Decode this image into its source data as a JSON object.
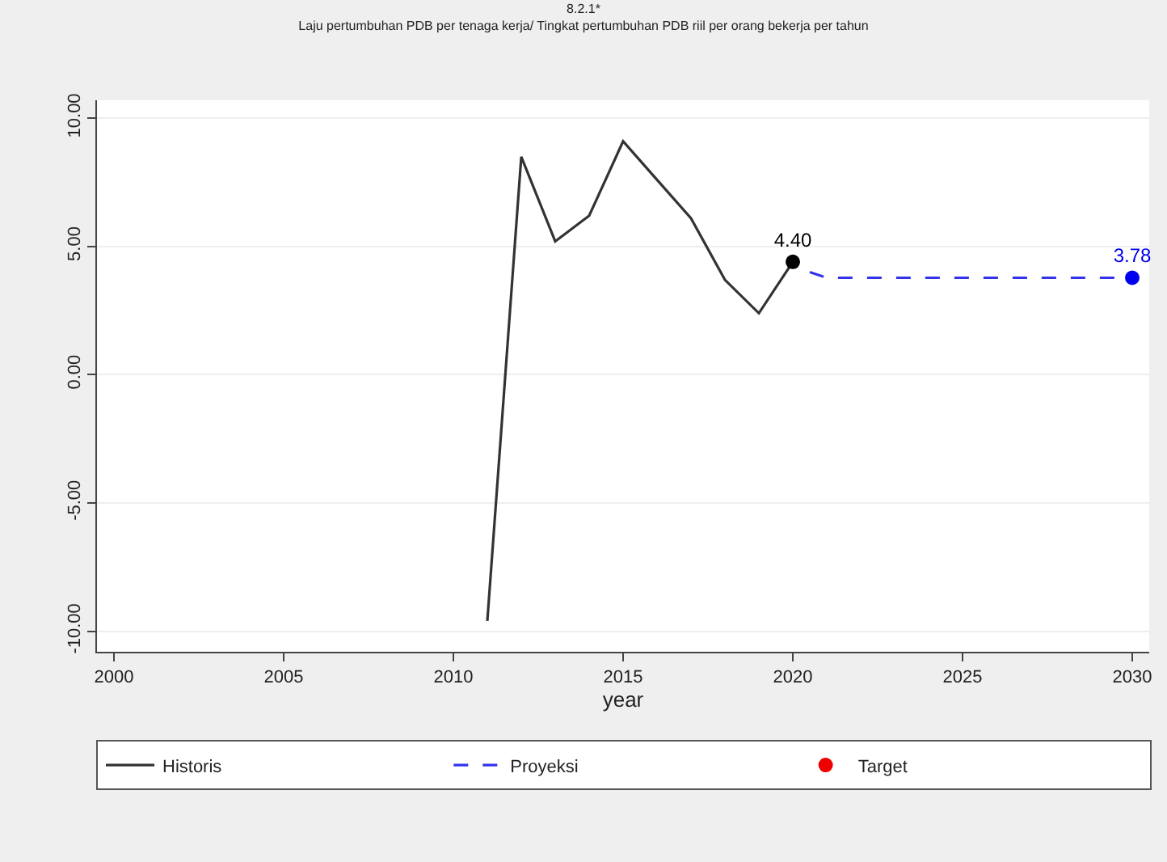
{
  "chart_data": {
    "type": "line",
    "title": "8.2.1*",
    "subtitle": "Laju pertumbuhan PDB per tenaga kerja/ Tingkat pertumbuhan PDB riil per orang bekerja per tahun",
    "xlabel": "year",
    "xlim": [
      1999.5,
      2030.5
    ],
    "xticks": [
      2000,
      2005,
      2010,
      2015,
      2020,
      2025,
      2030
    ],
    "ylim": [
      -10.8,
      10.7
    ],
    "yticks": [
      {
        "value": -10,
        "label": "-10.00"
      },
      {
        "value": -5,
        "label": "-5.00"
      },
      {
        "value": 0,
        "label": "0.00"
      },
      {
        "value": 5,
        "label": "5.00"
      },
      {
        "value": 10,
        "label": "10.00"
      }
    ],
    "grid": "y",
    "legend": "bottom",
    "series": [
      {
        "name": "Historis",
        "color": "#333333",
        "line_style": "solid",
        "marker": "none",
        "x": [
          2011,
          2012,
          2013,
          2014,
          2015,
          2016,
          2017,
          2018,
          2019,
          2020
        ],
        "values": [
          -9.6,
          8.5,
          5.2,
          6.2,
          9.1,
          7.6,
          6.1,
          3.7,
          2.4,
          4.4
        ]
      },
      {
        "name": "Proyeksi",
        "color": "#3333ee",
        "line_style": "dashed",
        "marker": "none",
        "x": [
          2020.5,
          2021,
          2030
        ],
        "values": [
          4.0,
          3.78,
          3.78
        ]
      },
      {
        "name": "Target",
        "type": "scatter",
        "color": "#ee0000",
        "marker": "circle"
      },
      {
        "type": "scatter",
        "color": "#000000",
        "marker": "circle",
        "x": [
          2020
        ],
        "values": [
          4.4
        ],
        "value_labels": [
          "4.40"
        ]
      },
      {
        "type": "scatter",
        "color": "#0000ee",
        "marker": "circle",
        "x": [
          2030
        ],
        "values": [
          3.78
        ],
        "value_labels": [
          "3.78"
        ]
      }
    ]
  }
}
